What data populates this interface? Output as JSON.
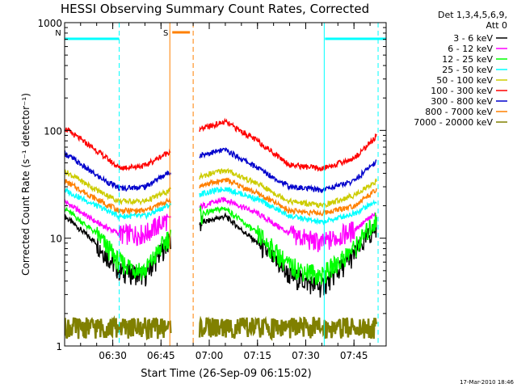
{
  "chart_data": {
    "type": "line",
    "title": "HESSI Observing Summary Count Rates, Corrected",
    "xlabel": "Start Time (26-Sep-09 06:15:02)",
    "ylabel": "Corrected Count Rate (s⁻¹ detector⁻¹)",
    "footer": "17-Mar-2010 18:46",
    "yscale": "log",
    "xlim": [
      "06:15:02",
      "07:55:00"
    ],
    "ylim": [
      1,
      1000
    ],
    "x_ticks": [
      "06:30",
      "06:45",
      "07:00",
      "07:15",
      "07:30",
      "07:45"
    ],
    "y_ticks": [
      "1",
      "10",
      "100",
      "1000"
    ],
    "legend": {
      "placement": "top-right outside",
      "header": [
        "Det 1,3,4,5,6,9,",
        "Att 0"
      ]
    },
    "flags": [
      {
        "label": "N",
        "color": "#00ffff",
        "intervals": [
          [
            "06:15:02",
            "06:32:00"
          ],
          [
            "07:36:00",
            "07:55:00"
          ]
        ]
      },
      {
        "label": "S",
        "color": "#ff8000",
        "intervals": [
          [
            "06:48:30",
            "06:54:00"
          ]
        ]
      }
    ],
    "vertical_lines": [
      {
        "time": "06:32:00",
        "color": "#00ffff",
        "style": "dashed"
      },
      {
        "time": "06:47:45",
        "color": "#ff8000",
        "style": "solid"
      },
      {
        "time": "06:55:00",
        "color": "#ff8000",
        "style": "dashed"
      },
      {
        "time": "07:35:45",
        "color": "#00ffff",
        "style": "solid"
      },
      {
        "time": "07:52:30",
        "color": "#00ffff",
        "style": "dashed"
      }
    ],
    "gap": [
      "06:48:00",
      "06:57:00"
    ],
    "series": [
      {
        "name": "3 - 6 keV",
        "color": "#000000",
        "x": [
          "06:15",
          "06:25",
          "06:32",
          "06:40",
          "06:47",
          "06:58",
          "07:05",
          "07:15",
          "07:25",
          "07:35",
          "07:45",
          "07:52"
        ],
        "y": [
          16,
          9,
          5,
          4.5,
          9,
          14,
          16,
          9,
          4.5,
          3.5,
          7,
          13
        ]
      },
      {
        "name": "6 - 12 keV",
        "color": "#ff00ff",
        "x": [
          "06:15",
          "06:25",
          "06:32",
          "06:40",
          "06:47",
          "06:58",
          "07:05",
          "07:15",
          "07:25",
          "07:35",
          "07:45",
          "07:52"
        ],
        "y": [
          22,
          14,
          11,
          11,
          15,
          20,
          23,
          17,
          11,
          9,
          12,
          17
        ]
      },
      {
        "name": "12 - 25 keV",
        "color": "#00ff00",
        "x": [
          "06:15",
          "06:25",
          "06:32",
          "06:40",
          "06:47",
          "06:58",
          "07:05",
          "07:15",
          "07:25",
          "07:35",
          "07:45",
          "07:52"
        ],
        "y": [
          19,
          11,
          6,
          5,
          10,
          17,
          19,
          11,
          5.5,
          4.5,
          8,
          15
        ]
      },
      {
        "name": "25 - 50 keV",
        "color": "#00ffff",
        "x": [
          "06:15",
          "06:25",
          "06:32",
          "06:40",
          "06:47",
          "06:58",
          "07:05",
          "07:15",
          "07:25",
          "07:35",
          "07:45",
          "07:52"
        ],
        "y": [
          28,
          20,
          16,
          16,
          20,
          26,
          29,
          23,
          16,
          14,
          17,
          22
        ]
      },
      {
        "name": "50 - 100 keV",
        "color": "#cccc00",
        "x": [
          "06:15",
          "06:25",
          "06:32",
          "06:40",
          "06:47",
          "06:58",
          "07:05",
          "07:15",
          "07:25",
          "07:35",
          "07:45",
          "07:52"
        ],
        "y": [
          42,
          28,
          22,
          22,
          27,
          38,
          43,
          32,
          22,
          20,
          25,
          34
        ]
      },
      {
        "name": "100 - 300 keV",
        "color": "#ff0000",
        "x": [
          "06:15",
          "06:25",
          "06:32",
          "06:40",
          "06:47",
          "06:58",
          "07:05",
          "07:15",
          "07:25",
          "07:35",
          "07:45",
          "07:52"
        ],
        "y": [
          105,
          65,
          45,
          47,
          62,
          105,
          120,
          80,
          48,
          44,
          55,
          88
        ]
      },
      {
        "name": "300 - 800 keV",
        "color": "#0000cc",
        "x": [
          "06:15",
          "06:25",
          "06:32",
          "06:40",
          "06:47",
          "06:58",
          "07:05",
          "07:15",
          "07:25",
          "07:35",
          "07:45",
          "07:52"
        ],
        "y": [
          62,
          38,
          29,
          30,
          40,
          60,
          66,
          45,
          30,
          28,
          34,
          52
        ]
      },
      {
        "name": "800 - 7000 keV",
        "color": "#ff8000",
        "x": [
          "06:15",
          "06:25",
          "06:32",
          "06:40",
          "06:47",
          "06:58",
          "07:05",
          "07:15",
          "07:25",
          "07:35",
          "07:45",
          "07:52"
        ],
        "y": [
          34,
          23,
          18,
          18,
          22,
          31,
          35,
          26,
          18,
          17,
          20,
          28
        ]
      },
      {
        "name": "7000 - 20000 keV",
        "color": "#808000",
        "x": [
          "06:15",
          "06:17",
          "06:48",
          "06:58",
          "07:05",
          "07:12",
          "07:52"
        ],
        "y": [
          1.5,
          1.5,
          1.5,
          1.5,
          1.5,
          1.5,
          1.5
        ]
      }
    ]
  }
}
